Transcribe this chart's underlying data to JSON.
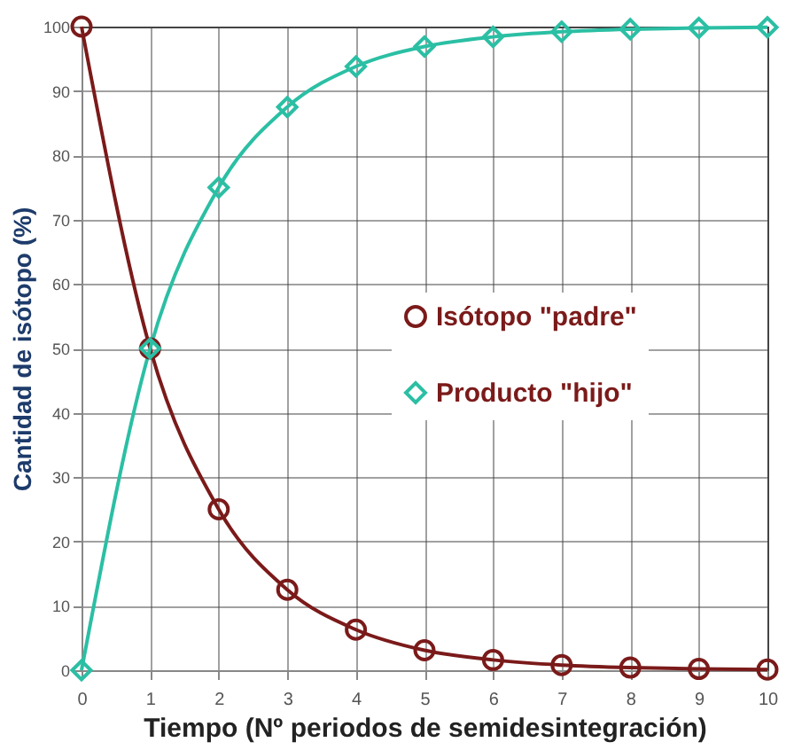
{
  "chart_data": {
    "type": "line",
    "xlabel": "Tiempo (Nº periodos de semidesintegración)",
    "ylabel": "Cantidad de isótopo (%)",
    "x": [
      0,
      1,
      2,
      3,
      4,
      5,
      6,
      7,
      8,
      9,
      10
    ],
    "series": [
      {
        "name": "Isótopo \"padre\"",
        "color": "#7b1a1a",
        "marker": "circle",
        "values": [
          100,
          50,
          25,
          12.5,
          6.3,
          3.1,
          1.6,
          0.8,
          0.4,
          0.2,
          0.1
        ]
      },
      {
        "name": "Producto \"hijo\"",
        "color": "#2bbfa4",
        "marker": "diamond",
        "values": [
          0,
          50,
          75,
          87.5,
          93.8,
          96.9,
          98.4,
          99.2,
          99.6,
          99.8,
          99.9
        ]
      }
    ],
    "xlim": [
      0,
      10
    ],
    "xticks": [
      0,
      1,
      2,
      3,
      4,
      5,
      6,
      7,
      8,
      9,
      10
    ],
    "ylim": [
      0,
      100
    ],
    "yticks": [
      0,
      10,
      20,
      30,
      40,
      50,
      60,
      70,
      80,
      90,
      100
    ],
    "grid": true,
    "legend": "right",
    "line_style": "solid"
  }
}
